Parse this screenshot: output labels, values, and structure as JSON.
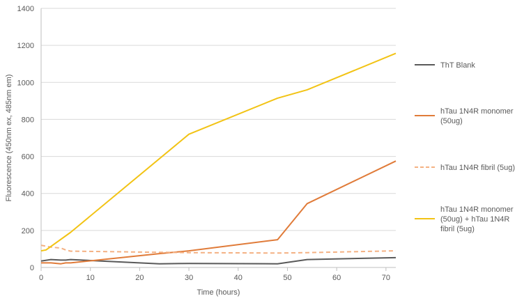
{
  "chart_data": {
    "type": "line",
    "title": "",
    "xlabel": "Time (hours)",
    "ylabel": "Fluorescence (450nm ex, 485nm em)",
    "xlim": [
      0,
      72
    ],
    "ylim": [
      0,
      1400
    ],
    "xticks": [
      0,
      10,
      20,
      30,
      40,
      50,
      60,
      70
    ],
    "yticks": [
      0,
      200,
      400,
      600,
      800,
      1000,
      1200,
      1400
    ],
    "grid": "horizontal",
    "legend_position": "right",
    "series": [
      {
        "name": "ThT Blank",
        "legend_lines": [
          "ThT Blank"
        ],
        "color": "#595959",
        "dash": "solid",
        "x": [
          0,
          2,
          4,
          5,
          6,
          24,
          30,
          48,
          54,
          72
        ],
        "y": [
          35,
          43,
          40,
          40,
          43,
          20,
          22,
          20,
          43,
          53
        ]
      },
      {
        "name": "hTau 1N4R monomer (50ug)",
        "legend_lines": [
          "hTau 1N4R monomer",
          "(50ug)"
        ],
        "color": "#E07B39",
        "dash": "solid",
        "x": [
          0,
          2,
          4,
          5,
          6,
          24,
          30,
          48,
          54,
          72
        ],
        "y": [
          25,
          25,
          20,
          25,
          25,
          75,
          90,
          150,
          345,
          575
        ]
      },
      {
        "name": "hTau 1N4R fibril (5ug)",
        "legend_lines": [
          "hTau 1N4R fibril (5ug)"
        ],
        "color": "#F4B183",
        "dash": "dashed",
        "x": [
          0,
          2,
          4,
          5,
          6,
          24,
          30,
          48,
          54,
          72
        ],
        "y": [
          120,
          110,
          105,
          95,
          88,
          82,
          80,
          78,
          80,
          90
        ]
      },
      {
        "name": "hTau 1N4R monomer (50ug) + hTau 1N4R fibril (5ug)",
        "legend_lines": [
          "hTau 1N4R monomer",
          "(50ug) + hTau 1N4R",
          "fibril (5ug)"
        ],
        "color": "#F2C314",
        "dash": "solid",
        "x": [
          0,
          1,
          6,
          30,
          48,
          54,
          72
        ],
        "y": [
          90,
          95,
          190,
          720,
          915,
          960,
          1157
        ]
      }
    ]
  }
}
